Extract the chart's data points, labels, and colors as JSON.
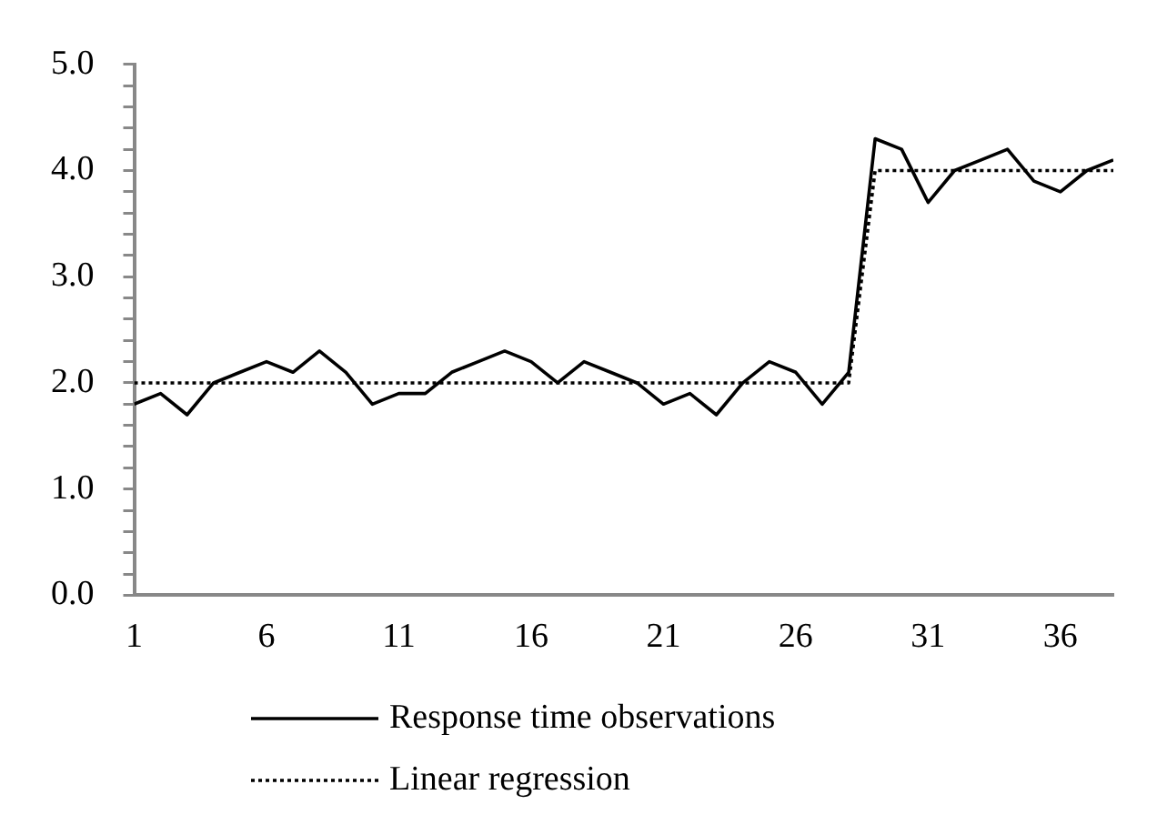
{
  "chart_data": {
    "type": "line",
    "x": [
      1,
      2,
      3,
      4,
      5,
      6,
      7,
      8,
      9,
      10,
      11,
      12,
      13,
      14,
      15,
      16,
      17,
      18,
      19,
      20,
      21,
      22,
      23,
      24,
      25,
      26,
      27,
      28,
      29,
      30,
      31,
      32,
      33,
      34,
      35,
      36,
      37,
      38
    ],
    "xlim": [
      1,
      38
    ],
    "xticks": [
      1,
      6,
      11,
      16,
      21,
      26,
      31,
      36
    ],
    "series": [
      {
        "name": "Response time observations",
        "color": "#000000",
        "line_style": "solid",
        "values": [
          1.8,
          1.9,
          1.7,
          2.0,
          2.1,
          2.2,
          2.1,
          2.3,
          2.1,
          1.8,
          1.9,
          1.9,
          2.1,
          2.2,
          2.3,
          2.2,
          2.0,
          2.2,
          2.1,
          2.0,
          1.8,
          1.9,
          1.7,
          2.0,
          2.2,
          2.1,
          1.8,
          2.1,
          4.3,
          4.2,
          3.7,
          4.0,
          4.1,
          4.2,
          3.9,
          3.8,
          4.0,
          4.1
        ]
      },
      {
        "name": "Linear regression",
        "color": "#000000",
        "line_style": "dotted",
        "values": [
          2.0,
          2.0,
          2.0,
          2.0,
          2.0,
          2.0,
          2.0,
          2.0,
          2.0,
          2.0,
          2.0,
          2.0,
          2.0,
          2.0,
          2.0,
          2.0,
          2.0,
          2.0,
          2.0,
          2.0,
          2.0,
          2.0,
          2.0,
          2.0,
          2.0,
          2.0,
          2.0,
          2.0,
          4.0,
          4.0,
          4.0,
          4.0,
          4.0,
          4.0,
          4.0,
          4.0,
          4.0,
          4.0
        ]
      }
    ],
    "ylim": [
      0,
      5
    ],
    "yticks": [
      {
        "value": 0,
        "label": "0.0"
      },
      {
        "value": 0.2,
        "label": null
      },
      {
        "value": 0.4,
        "label": null
      },
      {
        "value": 0.6,
        "label": null
      },
      {
        "value": 0.8,
        "label": null
      },
      {
        "value": 1,
        "label": "1.0"
      },
      {
        "value": 1.2,
        "label": null
      },
      {
        "value": 1.4,
        "label": null
      },
      {
        "value": 1.6,
        "label": null
      },
      {
        "value": 1.8,
        "label": null
      },
      {
        "value": 2,
        "label": "2.0"
      },
      {
        "value": 2.2,
        "label": null
      },
      {
        "value": 2.4,
        "label": null
      },
      {
        "value": 2.6,
        "label": null
      },
      {
        "value": 2.8,
        "label": null
      },
      {
        "value": 3,
        "label": "3.0"
      },
      {
        "value": 3.2,
        "label": null
      },
      {
        "value": 3.4,
        "label": null
      },
      {
        "value": 3.6,
        "label": null
      },
      {
        "value": 3.8,
        "label": null
      },
      {
        "value": 4,
        "label": "4.0"
      },
      {
        "value": 4.2,
        "label": null
      },
      {
        "value": 4.4,
        "label": null
      },
      {
        "value": 4.6,
        "label": null
      },
      {
        "value": 4.8,
        "label": null
      },
      {
        "value": 5,
        "label": "5.0"
      }
    ],
    "grid": false,
    "legend": "bottom",
    "marker": "none"
  }
}
